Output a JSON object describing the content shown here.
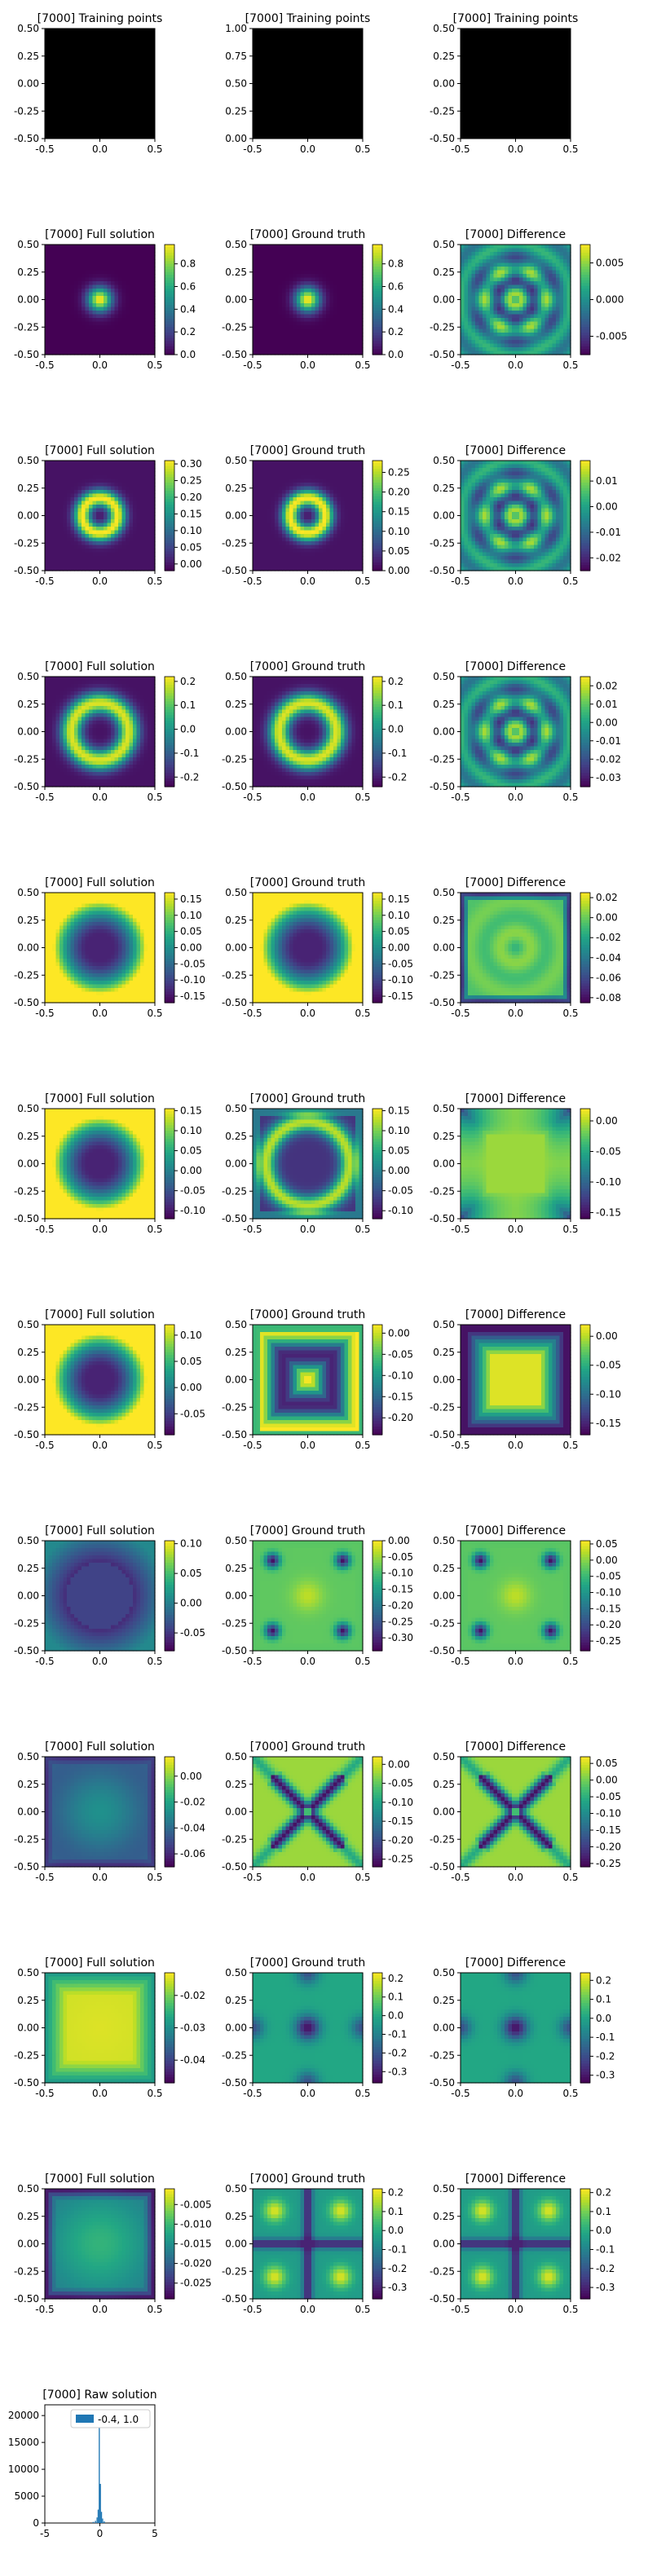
{
  "figure": {
    "step": "[7000]",
    "colormap": "viridis",
    "grid": false,
    "xlim": [
      -0.5,
      0.5
    ],
    "ylim": [
      -0.5,
      0.5
    ],
    "xticks": [
      "-0.5",
      "0.0",
      "0.5"
    ],
    "yticks": [
      "0.50",
      "0.25",
      "0.00",
      "-0.25",
      "-0.50"
    ]
  },
  "chart_data": [
    {
      "type": "scatter",
      "row": 0,
      "col": 0,
      "title": "[7000] Training points",
      "xlim": [
        -0.5,
        0.5
      ],
      "ylim": [
        -0.5,
        0.5
      ],
      "xticks": [
        "-0.5",
        "0.0",
        "0.5"
      ],
      "yticks": [
        "0.50",
        "0.25",
        "0.00",
        "-0.25",
        "-0.50"
      ],
      "fill": "#000000"
    },
    {
      "type": "scatter",
      "row": 0,
      "col": 1,
      "title": "[7000] Training points",
      "xlim": [
        -0.5,
        0.5
      ],
      "ylim": [
        0,
        1
      ],
      "xticks": [
        "-0.5",
        "0.0",
        "0.5"
      ],
      "yticks": [
        "1.00",
        "0.75",
        "0.50",
        "0.25",
        "0.00"
      ],
      "fill": "#000000"
    },
    {
      "type": "scatter",
      "row": 0,
      "col": 2,
      "title": "[7000] Training points",
      "xlim": [
        -0.5,
        0.5
      ],
      "ylim": [
        -0.5,
        0.5
      ],
      "xticks": [
        "-0.5",
        "0.0",
        "0.5"
      ],
      "yticks": [
        "0.50",
        "0.25",
        "0.00",
        "-0.25",
        "-0.50"
      ],
      "fill": "#000000"
    },
    {
      "type": "heatmap",
      "row": 1,
      "col": 0,
      "title": "[7000] Full solution",
      "pattern": "gauss",
      "vmin": 0,
      "vmax": 0.97,
      "colorbar_ticks": [
        "0.8",
        "0.6",
        "0.4",
        "0.2",
        "0.0"
      ],
      "colorbar_tick_values": [
        0.8,
        0.6,
        0.4,
        0.2,
        0.0
      ]
    },
    {
      "type": "heatmap",
      "row": 1,
      "col": 1,
      "title": "[7000] Ground truth",
      "pattern": "gauss",
      "vmin": 0,
      "vmax": 0.97,
      "colorbar_ticks": [
        "0.8",
        "0.6",
        "0.4",
        "0.2",
        "0.0"
      ],
      "colorbar_tick_values": [
        0.8,
        0.6,
        0.4,
        0.2,
        0.0
      ]
    },
    {
      "type": "heatmap",
      "row": 1,
      "col": 2,
      "title": "[7000] Difference",
      "pattern": "diffring",
      "vmin": -0.0075,
      "vmax": 0.0075,
      "colorbar_ticks": [
        "0.005",
        "0.000",
        "-0.005"
      ],
      "colorbar_tick_values": [
        0.005,
        0.0,
        -0.005
      ]
    },
    {
      "type": "heatmap",
      "row": 2,
      "col": 0,
      "title": "[7000] Full solution",
      "pattern": "ring",
      "vmin": -0.02,
      "vmax": 0.31,
      "colorbar_ticks": [
        "0.30",
        "0.25",
        "0.20",
        "0.15",
        "0.10",
        "0.05",
        "0.00"
      ],
      "colorbar_tick_values": [
        0.3,
        0.25,
        0.2,
        0.15,
        0.1,
        0.05,
        0.0
      ]
    },
    {
      "type": "heatmap",
      "row": 2,
      "col": 1,
      "title": "[7000] Ground truth",
      "pattern": "ring",
      "vmin": 0,
      "vmax": 0.28,
      "colorbar_ticks": [
        "0.25",
        "0.20",
        "0.15",
        "0.10",
        "0.05",
        "0.00"
      ],
      "colorbar_tick_values": [
        0.25,
        0.2,
        0.15,
        0.1,
        0.05,
        0.0
      ]
    },
    {
      "type": "heatmap",
      "row": 2,
      "col": 2,
      "title": "[7000] Difference",
      "pattern": "diffring",
      "vmin": -0.025,
      "vmax": 0.018,
      "colorbar_ticks": [
        "0.01",
        "0.00",
        "-0.01",
        "-0.02"
      ],
      "colorbar_tick_values": [
        0.01,
        0.0,
        -0.01,
        -0.02
      ]
    },
    {
      "type": "heatmap",
      "row": 3,
      "col": 0,
      "title": "[7000] Full solution",
      "pattern": "ringneg",
      "vmin": -0.24,
      "vmax": 0.22,
      "colorbar_ticks": [
        "0.2",
        "0.1",
        "0.0",
        "-0.1",
        "-0.2"
      ],
      "colorbar_tick_values": [
        0.2,
        0.1,
        0.0,
        -0.1,
        -0.2
      ]
    },
    {
      "type": "heatmap",
      "row": 3,
      "col": 1,
      "title": "[7000] Ground truth",
      "pattern": "ringneg",
      "vmin": -0.24,
      "vmax": 0.22,
      "colorbar_ticks": [
        "0.2",
        "0.1",
        "0.0",
        "-0.1",
        "-0.2"
      ],
      "colorbar_tick_values": [
        0.2,
        0.1,
        0.0,
        -0.1,
        -0.2
      ]
    },
    {
      "type": "heatmap",
      "row": 3,
      "col": 2,
      "title": "[7000] Difference",
      "pattern": "diffring",
      "vmin": -0.035,
      "vmax": 0.025,
      "colorbar_ticks": [
        "0.02",
        "0.01",
        "0.00",
        "-0.01",
        "-0.02",
        "-0.03"
      ],
      "colorbar_tick_values": [
        0.02,
        0.01,
        0.0,
        -0.01,
        -0.02,
        -0.03
      ]
    },
    {
      "type": "heatmap",
      "row": 4,
      "col": 0,
      "title": "[7000] Full solution",
      "pattern": "ringwide",
      "vmin": -0.17,
      "vmax": 0.17,
      "colorbar_ticks": [
        "0.15",
        "0.10",
        "0.05",
        "0.00",
        "-0.05",
        "-0.10",
        "-0.15"
      ],
      "colorbar_tick_values": [
        0.15,
        0.1,
        0.05,
        0.0,
        -0.05,
        -0.1,
        -0.15
      ]
    },
    {
      "type": "heatmap",
      "row": 4,
      "col": 1,
      "title": "[7000] Ground truth",
      "pattern": "ringwide",
      "vmin": -0.17,
      "vmax": 0.17,
      "colorbar_ticks": [
        "0.15",
        "0.10",
        "0.05",
        "0.00",
        "-0.05",
        "-0.10",
        "-0.15"
      ],
      "colorbar_tick_values": [
        0.15,
        0.1,
        0.05,
        0.0,
        -0.05,
        -0.1,
        -0.15
      ]
    },
    {
      "type": "heatmap",
      "row": 4,
      "col": 2,
      "title": "[7000] Difference",
      "pattern": "diffedge",
      "vmin": -0.085,
      "vmax": 0.025,
      "colorbar_ticks": [
        "0.02",
        "0.00",
        "-0.02",
        "-0.04",
        "-0.06",
        "-0.08"
      ],
      "colorbar_tick_values": [
        0.02,
        0.0,
        -0.02,
        -0.04,
        -0.06,
        -0.08
      ]
    },
    {
      "type": "heatmap",
      "row": 5,
      "col": 0,
      "title": "[7000] Full solution",
      "pattern": "ringwide",
      "vmin": -0.12,
      "vmax": 0.155,
      "colorbar_ticks": [
        "0.15",
        "0.10",
        "0.05",
        "0.00",
        "-0.05",
        "-0.10"
      ],
      "colorbar_tick_values": [
        0.15,
        0.1,
        0.05,
        0.0,
        -0.05,
        -0.1
      ]
    },
    {
      "type": "heatmap",
      "row": 5,
      "col": 1,
      "title": "[7000] Ground truth",
      "pattern": "ringcorner",
      "vmin": -0.12,
      "vmax": 0.155,
      "colorbar_ticks": [
        "0.15",
        "0.10",
        "0.05",
        "0.00",
        "-0.05",
        "-0.10"
      ],
      "colorbar_tick_values": [
        0.15,
        0.1,
        0.05,
        0.0,
        -0.05,
        -0.1
      ]
    },
    {
      "type": "heatmap",
      "row": 5,
      "col": 2,
      "title": "[7000] Difference",
      "pattern": "diffstar",
      "vmin": -0.16,
      "vmax": 0.02,
      "colorbar_ticks": [
        "0.00",
        "-0.05",
        "-0.10",
        "-0.15"
      ],
      "colorbar_tick_values": [
        0.0,
        -0.05,
        -0.1,
        -0.15
      ]
    },
    {
      "type": "heatmap",
      "row": 6,
      "col": 0,
      "title": "[7000] Full solution",
      "pattern": "ringwide",
      "vmin": -0.09,
      "vmax": 0.12,
      "colorbar_ticks": [
        "0.10",
        "0.05",
        "0.00",
        "-0.05"
      ],
      "colorbar_tick_values": [
        0.1,
        0.05,
        0.0,
        -0.05
      ]
    },
    {
      "type": "heatmap",
      "row": 6,
      "col": 1,
      "title": "[7000] Ground truth",
      "pattern": "squarecross",
      "vmin": -0.24,
      "vmax": 0.02,
      "colorbar_ticks": [
        "0.00",
        "-0.05",
        "-0.10",
        "-0.15",
        "-0.20"
      ],
      "colorbar_tick_values": [
        0.0,
        -0.05,
        -0.1,
        -0.15,
        -0.2
      ]
    },
    {
      "type": "heatmap",
      "row": 6,
      "col": 2,
      "title": "[7000] Difference",
      "pattern": "squarediff",
      "vmin": -0.17,
      "vmax": 0.02,
      "colorbar_ticks": [
        "0.00",
        "-0.05",
        "-0.10",
        "-0.15"
      ],
      "colorbar_tick_values": [
        0.0,
        -0.05,
        -0.1,
        -0.15
      ]
    },
    {
      "type": "heatmap",
      "row": 7,
      "col": 0,
      "title": "[7000] Full solution",
      "pattern": "blobwide",
      "vmin": -0.08,
      "vmax": 0.105,
      "colorbar_ticks": [
        "0.10",
        "0.05",
        "0.00",
        "-0.05"
      ],
      "colorbar_tick_values": [
        0.1,
        0.05,
        0.0,
        -0.05
      ]
    },
    {
      "type": "heatmap",
      "row": 7,
      "col": 1,
      "title": "[7000] Ground truth",
      "pattern": "cornerdots",
      "vmin": -0.34,
      "vmax": 0.0,
      "colorbar_ticks": [
        "0.00",
        "-0.05",
        "-0.10",
        "-0.15",
        "-0.20",
        "-0.25",
        "-0.30"
      ],
      "colorbar_tick_values": [
        0.0,
        -0.05,
        -0.1,
        -0.15,
        -0.2,
        -0.25,
        -0.3
      ]
    },
    {
      "type": "heatmap",
      "row": 7,
      "col": 2,
      "title": "[7000] Difference",
      "pattern": "cornerdots",
      "vmin": -0.28,
      "vmax": 0.06,
      "colorbar_ticks": [
        "0.05",
        "0.00",
        "-0.05",
        "-0.10",
        "-0.15",
        "-0.20",
        "-0.25"
      ],
      "colorbar_tick_values": [
        0.05,
        0.0,
        -0.05,
        -0.1,
        -0.15,
        -0.2,
        -0.25
      ]
    },
    {
      "type": "heatmap",
      "row": 8,
      "col": 0,
      "title": "[7000] Full solution",
      "pattern": "flatblob",
      "vmin": -0.07,
      "vmax": 0.015,
      "colorbar_ticks": [
        "0.00",
        "-0.02",
        "-0.04",
        "-0.06"
      ],
      "colorbar_tick_values": [
        0.0,
        -0.02,
        -0.04,
        -0.06
      ]
    },
    {
      "type": "heatmap",
      "row": 8,
      "col": 1,
      "title": "[7000] Ground truth",
      "pattern": "xcross",
      "vmin": -0.27,
      "vmax": 0.02,
      "colorbar_ticks": [
        "0.00",
        "-0.05",
        "-0.10",
        "-0.15",
        "-0.20",
        "-0.25"
      ],
      "colorbar_tick_values": [
        0.0,
        -0.05,
        -0.1,
        -0.15,
        -0.2,
        -0.25
      ]
    },
    {
      "type": "heatmap",
      "row": 8,
      "col": 2,
      "title": "[7000] Difference",
      "pattern": "xcross",
      "vmin": -0.26,
      "vmax": 0.07,
      "colorbar_ticks": [
        "0.05",
        "0.00",
        "-0.05",
        "-0.10",
        "-0.15",
        "-0.20",
        "-0.25"
      ],
      "colorbar_tick_values": [
        0.05,
        0.0,
        -0.05,
        -0.1,
        -0.15,
        -0.2,
        -0.25
      ]
    },
    {
      "type": "heatmap",
      "row": 9,
      "col": 0,
      "title": "[7000] Full solution",
      "pattern": "brightsquare",
      "vmin": -0.047,
      "vmax": -0.013,
      "colorbar_ticks": [
        "-0.02",
        "-0.03",
        "-0.04"
      ],
      "colorbar_tick_values": [
        -0.02,
        -0.03,
        -0.04
      ]
    },
    {
      "type": "heatmap",
      "row": 9,
      "col": 1,
      "title": "[7000] Ground truth",
      "pattern": "dots4",
      "vmin": -0.36,
      "vmax": 0.23,
      "colorbar_ticks": [
        "0.2",
        "0.1",
        "0.0",
        "-0.1",
        "-0.2",
        "-0.3"
      ],
      "colorbar_tick_values": [
        0.2,
        0.1,
        0.0,
        -0.1,
        -0.2,
        -0.3
      ]
    },
    {
      "type": "heatmap",
      "row": 9,
      "col": 2,
      "title": "[7000] Difference",
      "pattern": "dots4",
      "vmin": -0.34,
      "vmax": 0.24,
      "colorbar_ticks": [
        "0.2",
        "0.1",
        "0.0",
        "-0.1",
        "-0.2",
        "-0.3"
      ],
      "colorbar_tick_values": [
        0.2,
        0.1,
        0.0,
        -0.1,
        -0.2,
        -0.3
      ]
    },
    {
      "type": "heatmap",
      "row": 10,
      "col": 0,
      "title": "[7000] Full solution",
      "pattern": "smoothcorner",
      "vmin": -0.029,
      "vmax": -0.001,
      "colorbar_ticks": [
        "-0.005",
        "-0.010",
        "-0.015",
        "-0.020",
        "-0.025"
      ],
      "colorbar_tick_values": [
        -0.005,
        -0.01,
        -0.015,
        -0.02,
        -0.025
      ]
    },
    {
      "type": "heatmap",
      "row": 10,
      "col": 1,
      "title": "[7000] Ground truth",
      "pattern": "plus",
      "vmin": -0.36,
      "vmax": 0.22,
      "colorbar_ticks": [
        "0.2",
        "0.1",
        "0.0",
        "-0.1",
        "-0.2",
        "-0.3"
      ],
      "colorbar_tick_values": [
        0.2,
        0.1,
        0.0,
        -0.1,
        -0.2,
        -0.3
      ]
    },
    {
      "type": "heatmap",
      "row": 10,
      "col": 2,
      "title": "[7000] Difference",
      "pattern": "plus",
      "vmin": -0.36,
      "vmax": 0.22,
      "colorbar_ticks": [
        "0.2",
        "0.1",
        "0.0",
        "-0.1",
        "-0.2",
        "-0.3"
      ],
      "colorbar_tick_values": [
        0.2,
        0.1,
        0.0,
        -0.1,
        -0.2,
        -0.3
      ]
    },
    {
      "type": "bar",
      "row": 11,
      "col": 0,
      "title": "[7000] Raw solution",
      "xlim": [
        -5,
        5
      ],
      "ylim": [
        0,
        22000
      ],
      "xticks": [
        "-5",
        "0",
        "5"
      ],
      "yticks": [
        "20000",
        "15000",
        "10000",
        "5000",
        "0"
      ],
      "legend_label": "-0.4, 1.0",
      "legend_placement": "upper-right",
      "bar_color": "#1f77b4",
      "peak": {
        "x": 0.0,
        "y": 20800
      }
    }
  ]
}
